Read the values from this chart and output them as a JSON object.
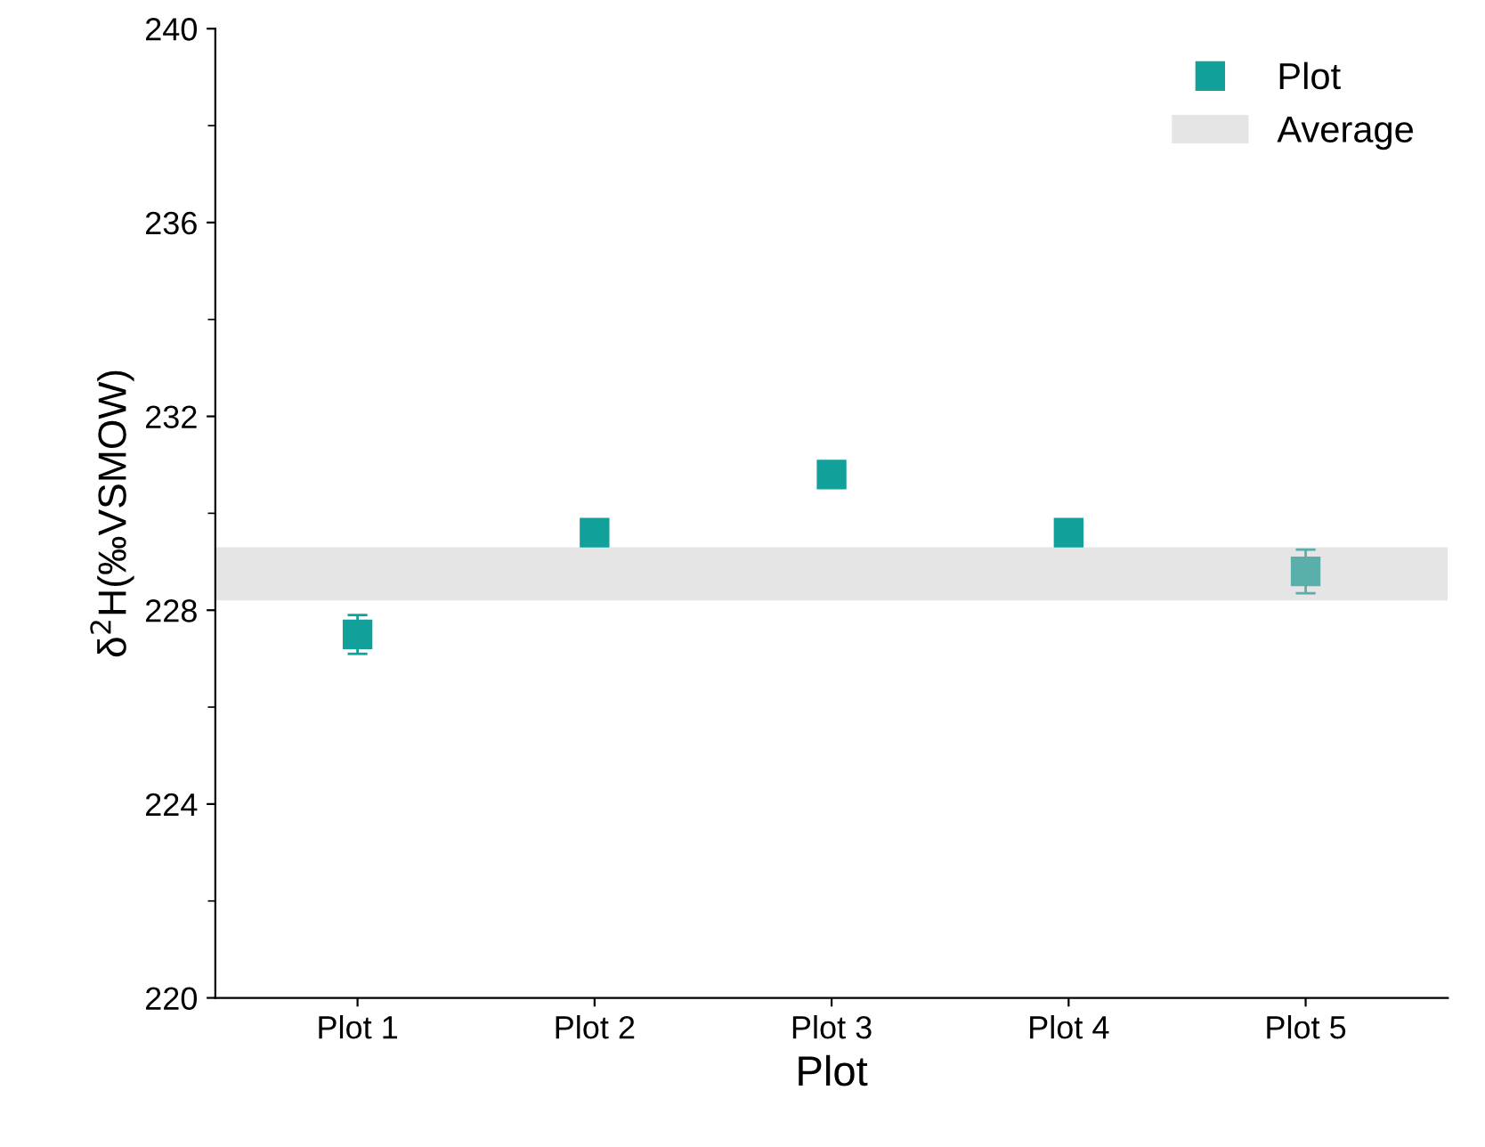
{
  "chart_data": {
    "type": "scatter",
    "xlabel": "Plot",
    "ylabel": "δ$^{2}$H(‰VSMOW)",
    "categories": [
      "Plot 1",
      "Plot 2",
      "Plot 3",
      "Plot 4",
      "Plot 5"
    ],
    "series": [
      {
        "name": "Plot",
        "color": "#12a19a",
        "colors": [
          "#12a19a",
          "#12a19a",
          "#12a19a",
          "#12a19a",
          "#5aafaa"
        ],
        "values": [
          227.5,
          229.6,
          230.8,
          229.6,
          228.8
        ],
        "errors": [
          0.4,
          null,
          null,
          null,
          0.45
        ]
      }
    ],
    "bands": [
      {
        "axis": "y",
        "from": 228.2,
        "to": 229.3,
        "label": "Average",
        "color": "#e5e5e5"
      }
    ],
    "ylim": [
      220,
      240
    ],
    "yticks": [
      220,
      224,
      228,
      232,
      236,
      240
    ],
    "marker": "square",
    "legend": "top right",
    "grid": false
  }
}
